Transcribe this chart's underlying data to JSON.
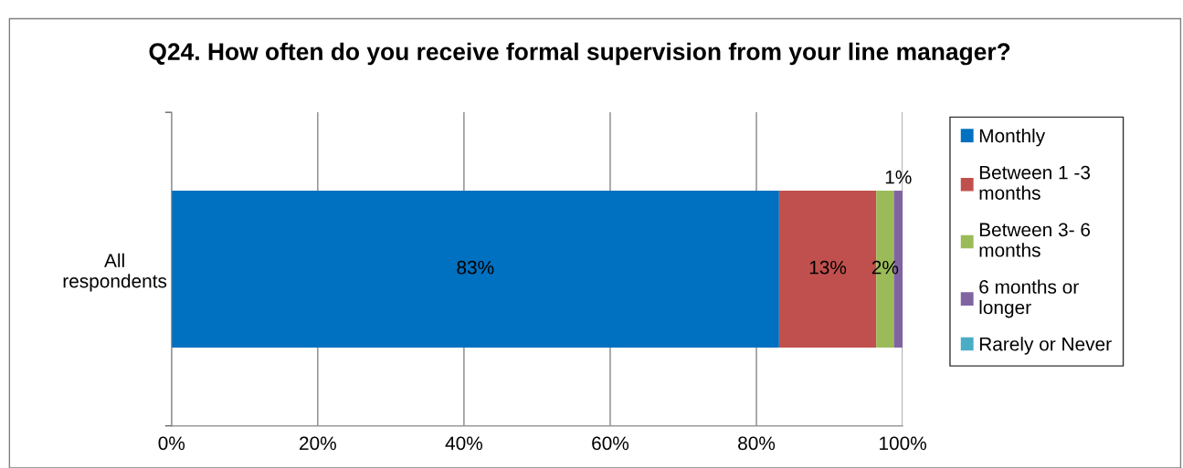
{
  "chart_data": {
    "type": "bar",
    "orientation": "horizontal",
    "stacked": true,
    "title": "Q24. How often do you receive formal supervision from your line manager?",
    "categories": [
      "All\nrespondents"
    ],
    "series": [
      {
        "name": "Monthly",
        "color": "#0070c0",
        "values": [
          83.1
        ],
        "value_labels": [
          "83%"
        ]
      },
      {
        "name": "Between 1 -3\nmonths",
        "color": "#c0504d",
        "values": [
          13.3
        ],
        "value_labels": [
          "13%"
        ]
      },
      {
        "name": "Between 3- 6\nmonths",
        "color": "#9bbb59",
        "values": [
          2.4
        ],
        "value_labels": [
          "2%"
        ]
      },
      {
        "name": "6 months or\nlonger",
        "color": "#8064a2",
        "values": [
          1.2
        ],
        "value_labels": [
          "1%"
        ]
      },
      {
        "name": "Rarely or Never",
        "color": "#4bacc6",
        "values": [
          0
        ],
        "value_labels": [
          null
        ]
      }
    ],
    "xlim": [
      0,
      100
    ],
    "xticks": [
      {
        "value": 0,
        "label": "0%"
      },
      {
        "value": 20,
        "label": "20%"
      },
      {
        "value": 40,
        "label": "40%"
      },
      {
        "value": 60,
        "label": "60%"
      },
      {
        "value": 80,
        "label": "80%"
      },
      {
        "value": 100,
        "label": "100%"
      }
    ],
    "grid": "x",
    "legend": "right"
  }
}
